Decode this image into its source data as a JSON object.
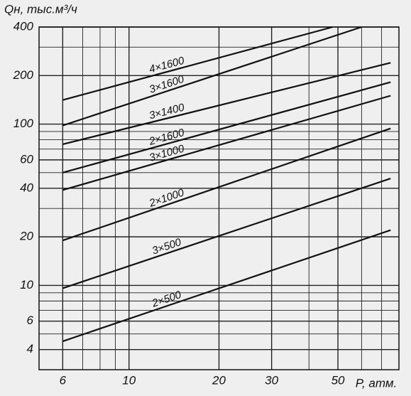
{
  "chart_data": {
    "type": "line",
    "log_x": true,
    "log_y": true,
    "grid": true,
    "y_label": "Qн, тыс.м³/ч",
    "x_label": "P, атм.",
    "xlim": [
      5,
      80
    ],
    "ylim": [
      3,
      400
    ],
    "xticks": [
      6,
      10,
      20,
      30,
      50
    ],
    "yticks": [
      4,
      6,
      10,
      20,
      40,
      60,
      100,
      200,
      400
    ],
    "xgrid": [
      5,
      6,
      7,
      8,
      9,
      10,
      20,
      30,
      40,
      50,
      60,
      70,
      80
    ],
    "ygrid": [
      3,
      4,
      5,
      6,
      7,
      8,
      9,
      10,
      20,
      30,
      40,
      50,
      60,
      70,
      80,
      90,
      100,
      200,
      300,
      400
    ],
    "series": [
      {
        "name": "4×1600",
        "color": "#111111",
        "x": [
          6,
          48
        ],
        "values": [
          141,
          400
        ]
      },
      {
        "name": "3×1600",
        "color": "#111111",
        "x": [
          6,
          60
        ],
        "values": [
          98,
          400
        ]
      },
      {
        "name": "3×1400",
        "color": "#111111",
        "x": [
          6,
          75
        ],
        "values": [
          75,
          240
        ]
      },
      {
        "name": "2×1600",
        "color": "#111111",
        "x": [
          6,
          75
        ],
        "values": [
          50,
          182
        ]
      },
      {
        "name": "3×1000",
        "color": "#111111",
        "x": [
          6,
          75
        ],
        "values": [
          39,
          150
        ]
      },
      {
        "name": "2×1000",
        "color": "#111111",
        "x": [
          6,
          75
        ],
        "values": [
          19,
          94
        ]
      },
      {
        "name": "3×500",
        "color": "#111111",
        "x": [
          6,
          75
        ],
        "values": [
          9.6,
          46
        ]
      },
      {
        "name": "2×500",
        "color": "#111111",
        "x": [
          6,
          75
        ],
        "values": [
          4.5,
          22
        ]
      }
    ]
  }
}
